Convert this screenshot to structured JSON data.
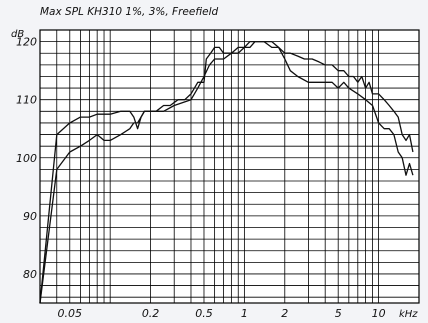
{
  "chart_data": {
    "type": "line",
    "title": "Max SPL KH310 1%, 3%, Freefield",
    "ylabel": "dB",
    "xlabel": "kHz",
    "x_scale": "log",
    "xlim": [
      0.03,
      20
    ],
    "ylim": [
      75,
      122
    ],
    "grid": true,
    "y_ticks": [
      {
        "value": 80,
        "label": "80"
      },
      {
        "value": 90,
        "label": "90"
      },
      {
        "value": 100,
        "label": "100"
      },
      {
        "value": 110,
        "label": "110"
      },
      {
        "value": 120,
        "label": "120"
      }
    ],
    "x_ticks": [
      {
        "value": 0.05,
        "label": "0.05"
      },
      {
        "value": 0.2,
        "label": "0.2"
      },
      {
        "value": 0.5,
        "label": "0.5"
      },
      {
        "value": 1,
        "label": "1"
      },
      {
        "value": 2,
        "label": "2"
      },
      {
        "value": 5,
        "label": "5"
      },
      {
        "value": 10,
        "label": "10"
      }
    ],
    "x_grid": [
      0.03,
      0.04,
      0.05,
      0.06,
      0.07,
      0.08,
      0.09,
      0.1,
      0.2,
      0.3,
      0.4,
      0.5,
      0.6,
      0.7,
      0.8,
      0.9,
      1,
      2,
      3,
      4,
      5,
      6,
      7,
      8,
      9,
      10,
      20
    ],
    "series": [
      {
        "x": [
          0.03,
          0.04,
          0.05,
          0.06,
          0.07,
          0.08,
          0.09,
          0.1,
          0.12,
          0.14,
          0.15,
          0.16,
          0.17,
          0.18,
          0.2,
          0.22,
          0.25,
          0.28,
          0.32,
          0.36,
          0.4,
          0.45,
          0.5,
          0.52,
          0.56,
          0.6,
          0.65,
          0.7,
          0.8,
          0.9,
          1,
          1.1,
          1.2,
          1.4,
          1.6,
          1.8,
          2,
          2.2,
          2.5,
          2.8,
          3.2,
          3.6,
          4,
          4.5,
          5,
          5.5,
          6,
          6.5,
          7,
          7.5,
          8,
          8.5,
          9,
          10,
          11,
          12,
          13,
          14,
          15,
          16,
          17,
          18
        ],
        "y": [
          75,
          104,
          106,
          107,
          107,
          107.5,
          107.5,
          107.5,
          108,
          108,
          107,
          105,
          107,
          108,
          108,
          108,
          109,
          109,
          110,
          110,
          111,
          113,
          113,
          117,
          118,
          119,
          119,
          118,
          118,
          119,
          119,
          120,
          120,
          120,
          120,
          119,
          118,
          118,
          117.5,
          117,
          117,
          116.5,
          116,
          116,
          115,
          115,
          114,
          114,
          113,
          114,
          112,
          113,
          111,
          111,
          110,
          109,
          108,
          107,
          104,
          103,
          104,
          101
        ]
      },
      {
        "x": [
          0.03,
          0.04,
          0.05,
          0.06,
          0.07,
          0.08,
          0.09,
          0.1,
          0.12,
          0.14,
          0.15,
          0.16,
          0.18,
          0.2,
          0.25,
          0.3,
          0.4,
          0.45,
          0.5,
          0.55,
          0.6,
          0.7,
          0.8,
          0.9,
          1,
          1.1,
          1.2,
          1.4,
          1.6,
          1.8,
          2,
          2.2,
          2.5,
          3,
          3.5,
          4,
          4.5,
          5,
          5.5,
          6,
          7,
          8,
          9,
          10,
          11,
          12,
          13,
          14,
          15,
          16,
          17,
          18
        ],
        "y": [
          75,
          98,
          101,
          102,
          103,
          104,
          103,
          103,
          104,
          105,
          106,
          106,
          108,
          108,
          108,
          109,
          110,
          112,
          114,
          116,
          117,
          117,
          118,
          118,
          119,
          119,
          120,
          120,
          119,
          119,
          117,
          115,
          114,
          113,
          113,
          113,
          113,
          112,
          113,
          112,
          111,
          110,
          109,
          106,
          105,
          105,
          104,
          101,
          100,
          97,
          99,
          97
        ]
      }
    ]
  }
}
